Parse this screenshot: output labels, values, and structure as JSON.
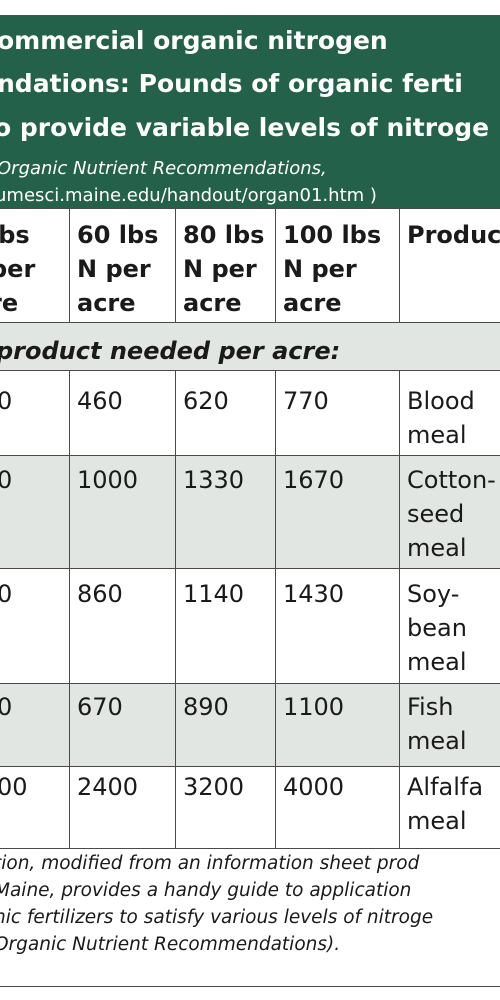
{
  "header": {
    "title_line1": "ommercial organic nitrogen",
    "title_line2": "ndations:  Pounds of organic ferti",
    "title_line3": "o provide variable levels of nitroge",
    "source_line1": "Organic Nutrient Recommendations,",
    "source_line2": "umesci.maine.edu/handout/organ01.htm )"
  },
  "table": {
    "columns": [
      "lbs\nper\nre",
      "60 lbs\nN per\nacre",
      "80 lbs\nN per\nacre",
      "100 lbs\nN per\nacre",
      "Produc"
    ],
    "section_label": "product needed per acre:",
    "rows": [
      {
        "c0": "0",
        "c1": "460",
        "c2": "620",
        "c3": "770",
        "product": "Blood\nmeal"
      },
      {
        "c0": "0",
        "c1": "1000",
        "c2": "1330",
        "c3": "1670",
        "product": "Cotton-\nseed\nmeal"
      },
      {
        "c0": "0",
        "c1": "860",
        "c2": "1140",
        "c3": "1430",
        "product": "Soy-\nbean\nmeal"
      },
      {
        "c0": "0",
        "c1": "670",
        "c2": "890",
        "c3": "1100",
        "product": "Fish\nmeal"
      },
      {
        "c0": "00",
        "c1": "2400",
        "c2": "3200",
        "c3": "4000",
        "product": "Alfalfa\nmeal"
      }
    ]
  },
  "caption": {
    "line1": "tion, modified from an information sheet prod",
    "line2": "Maine, provides a handy guide to application",
    "line3": "nic fertilizers to satisfy various levels of nitroge",
    "line4": "Organic Nutrient Recommendations)."
  },
  "colors": {
    "header_bg": "#24614a",
    "section_bg": "#e2e6e3",
    "row_shade": "#e2e6e3"
  }
}
